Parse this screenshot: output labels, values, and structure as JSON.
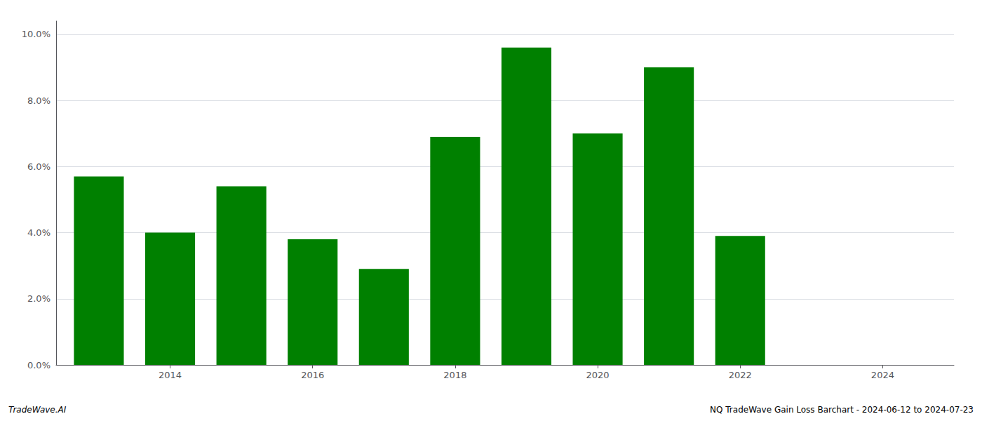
{
  "chart_data": {
    "type": "bar",
    "x": [
      2013,
      2014,
      2015,
      2016,
      2017,
      2018,
      2019,
      2020,
      2021,
      2022,
      2023
    ],
    "values": [
      0.057,
      0.04,
      0.054,
      0.038,
      0.029,
      0.069,
      0.096,
      0.07,
      0.09,
      0.039,
      0.0
    ],
    "color": "#008000",
    "xlim": [
      2012.4,
      2025.0
    ],
    "xticks": [
      2014,
      2016,
      2018,
      2020,
      2022,
      2024
    ],
    "ylim": [
      0,
      0.104
    ],
    "yticks": [
      {
        "value": 0.0,
        "label": "0.0%"
      },
      {
        "value": 0.02,
        "label": "2.0%"
      },
      {
        "value": 0.04,
        "label": "4.0%"
      },
      {
        "value": 0.06,
        "label": "6.0%"
      },
      {
        "value": 0.08,
        "label": "8.0%"
      },
      {
        "value": 0.1,
        "label": "10.0%"
      }
    ],
    "grid": true,
    "annotations": [
      "TradeWave.AI",
      "NQ TradeWave Gain Loss Barchart - 2024-06-12 to 2024-07-23"
    ]
  }
}
